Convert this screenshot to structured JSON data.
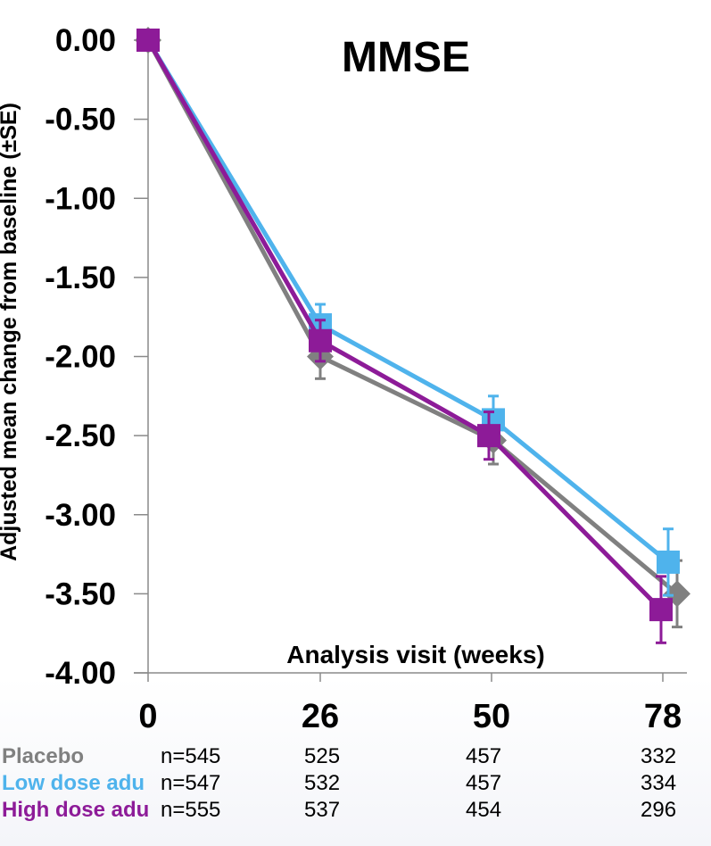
{
  "chart_data": {
    "type": "line",
    "title": "MMSE",
    "xlabel": "Analysis visit (weeks)",
    "ylabel": "Adjusted mean change from baseline (±SE)",
    "x": [
      0,
      26,
      50,
      78
    ],
    "x_tick_labels": [
      "0",
      "26",
      "50",
      "78"
    ],
    "y_tick_labels": [
      "0.00",
      "-0.50",
      "-1.00",
      "-1.50",
      "-2.00",
      "-2.50",
      "-3.00",
      "-3.50",
      "-4.00"
    ],
    "ylim": [
      -4.0,
      0.0
    ],
    "series": [
      {
        "name": "Placebo",
        "color": "#808080",
        "marker": "diamond",
        "values": [
          0.0,
          -2.0,
          -2.53,
          -3.5
        ],
        "se": [
          0.0,
          0.14,
          0.15,
          0.21
        ]
      },
      {
        "name": "Low dose adu",
        "color": "#4fb3ec",
        "marker": "square",
        "values": [
          0.0,
          -1.8,
          -2.4,
          -3.3
        ],
        "se": [
          0.0,
          0.13,
          0.15,
          0.21
        ]
      },
      {
        "name": "High dose adu",
        "color": "#8d1b98",
        "marker": "square",
        "values": [
          0.0,
          -1.9,
          -2.5,
          -3.6
        ],
        "se": [
          0.0,
          0.13,
          0.15,
          0.21
        ]
      }
    ],
    "n_at_risk": [
      {
        "label": "Placebo",
        "counts": [
          "n=545",
          "525",
          "457",
          "332"
        ]
      },
      {
        "label": "Low dose adu",
        "counts": [
          "n=547",
          "532",
          "457",
          "334"
        ]
      },
      {
        "label": "High dose adu",
        "counts": [
          "n=555",
          "537",
          "454",
          "296"
        ]
      }
    ]
  }
}
